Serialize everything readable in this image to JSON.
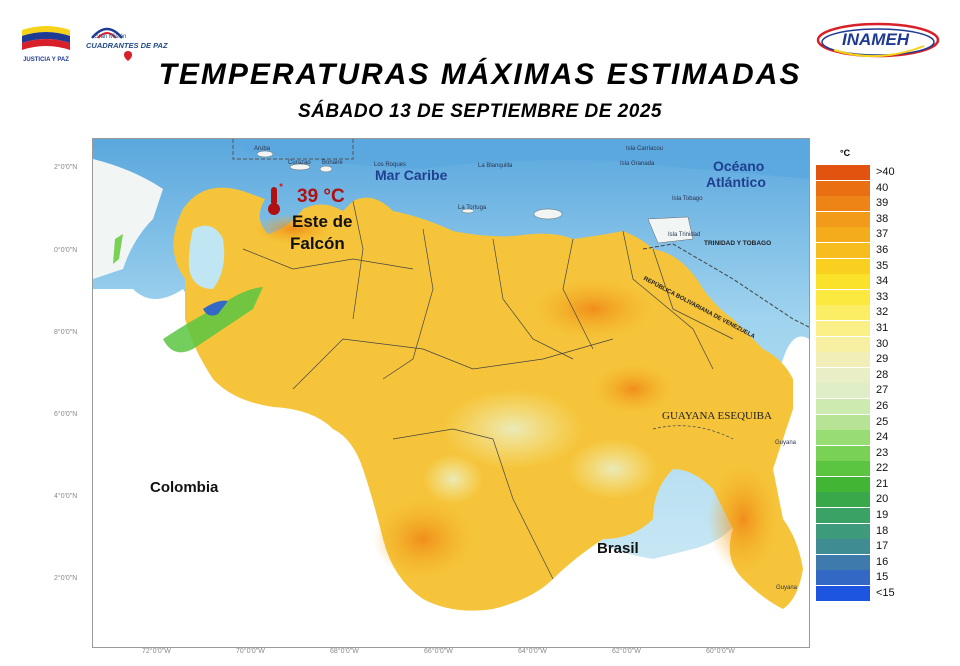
{
  "header": {
    "title": "TEMPERATURAS MÁXIMAS ESTIMADAS",
    "subtitle": "SÁBADO 13 DE SEPTIEMBRE DE 2025"
  },
  "logos": {
    "left1_caption": "JUSTICIA Y PAZ",
    "left2_line1": "Gran Misión",
    "left2_line2": "CUADRANTES DE PAZ",
    "right": "INAMEH"
  },
  "callout": {
    "temperature": "39 °C",
    "place_line1": "Este de",
    "place_line2": "Falcón"
  },
  "map_labels": {
    "sea": "Mar Caribe",
    "ocean_line1": "Océano",
    "ocean_line2": "Atlántico",
    "colombia": "Colombia",
    "brasil": "Brasil",
    "guayana_esequiba": "GUAYANA ESEQUIBA",
    "trinidad": "TRINIDAD Y TOBAGO",
    "venezuela_border": "REPÚBLICA BOLIVARIANA DE VENEZUELA",
    "aruba": "Aruba",
    "curazao": "Curazao",
    "bonaire": "Bonaire",
    "la_tortuga": "La Tortuga",
    "la_blanquilla": "La Blanquilla",
    "los_roques": "Los Roques",
    "isla_carriacou": "Isla Carriacou",
    "isla_granada": "Isla Granada",
    "isla_tobago": "Isla Tobago",
    "isla_trinidad": "Isla Trinidad",
    "guyana_1": "Guyana",
    "guyana_2": "Guyana"
  },
  "axes": {
    "lat_labels": [
      "2°0'0\"N",
      "0°0'0\"N",
      "8°0'0\"N",
      "6°0'0\"N",
      "4°0'0\"N",
      "2°0'0\"N"
    ],
    "lon_labels": [
      "72°0'0\"W",
      "70°0'0\"W",
      "68°0'0\"W",
      "66°0'0\"W",
      "64°0'0\"W",
      "62°0'0\"W",
      "60°0'0\"W"
    ]
  },
  "legend": {
    "unit": "°C",
    "items": [
      {
        "label": ">40",
        "color": "#e2530f"
      },
      {
        "label": "40",
        "color": "#ea6e12"
      },
      {
        "label": "39",
        "color": "#ef8416"
      },
      {
        "label": "38",
        "color": "#f29a19"
      },
      {
        "label": "37",
        "color": "#f5ac1c"
      },
      {
        "label": "36",
        "color": "#f7bd1f"
      },
      {
        "label": "35",
        "color": "#f9d020"
      },
      {
        "label": "34",
        "color": "#fae12a"
      },
      {
        "label": "33",
        "color": "#fbe93f"
      },
      {
        "label": "32",
        "color": "#fbee64"
      },
      {
        "label": "31",
        "color": "#faf087"
      },
      {
        "label": "30",
        "color": "#f7efa2"
      },
      {
        "label": "29",
        "color": "#f1eeb8"
      },
      {
        "label": "28",
        "color": "#e9eec6"
      },
      {
        "label": "27",
        "color": "#dfeec6"
      },
      {
        "label": "26",
        "color": "#cdeab0"
      },
      {
        "label": "25",
        "color": "#b6e494"
      },
      {
        "label": "24",
        "color": "#98dc74"
      },
      {
        "label": "23",
        "color": "#79d156"
      },
      {
        "label": "22",
        "color": "#5bc542"
      },
      {
        "label": "21",
        "color": "#43b535"
      },
      {
        "label": "20",
        "color": "#38a84a"
      },
      {
        "label": "19",
        "color": "#3aa264"
      },
      {
        "label": "18",
        "color": "#3d9a7a"
      },
      {
        "label": "17",
        "color": "#3f8c92"
      },
      {
        "label": "16",
        "color": "#3f7aac"
      },
      {
        "label": "15",
        "color": "#3368c4"
      },
      {
        "label": "<15",
        "color": "#1e55e0"
      }
    ]
  },
  "colors": {
    "sea": "#bfe6f2",
    "sea_deep": "#5aa7de",
    "land_base": "#f5c43a",
    "border": "#444444"
  }
}
